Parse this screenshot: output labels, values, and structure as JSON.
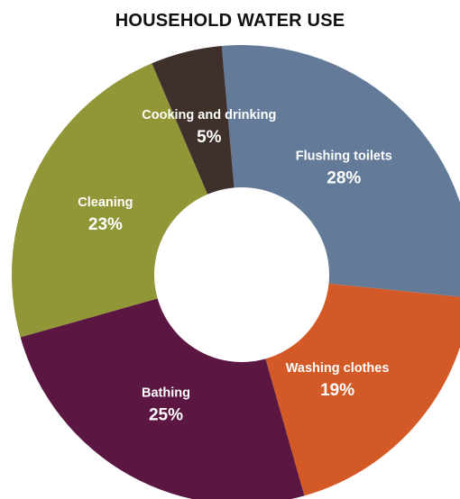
{
  "chart_data": {
    "type": "pie",
    "title": "HOUSEHOLD WATER USE",
    "slices": [
      {
        "label": "Flushing toilets",
        "value": 28,
        "value_label": "28%",
        "color": "#637b98"
      },
      {
        "label": "Washing clothes",
        "value": 19,
        "value_label": "19%",
        "color": "#d35927"
      },
      {
        "label": "Bathing",
        "value": 25,
        "value_label": "25%",
        "color": "#5b1741"
      },
      {
        "label": "Cleaning",
        "value": 23,
        "value_label": "23%",
        "color": "#919637"
      },
      {
        "label": "Cooking and drinking",
        "value": 5,
        "value_label": "5%",
        "color": "#3f302b"
      }
    ],
    "donut": true
  }
}
